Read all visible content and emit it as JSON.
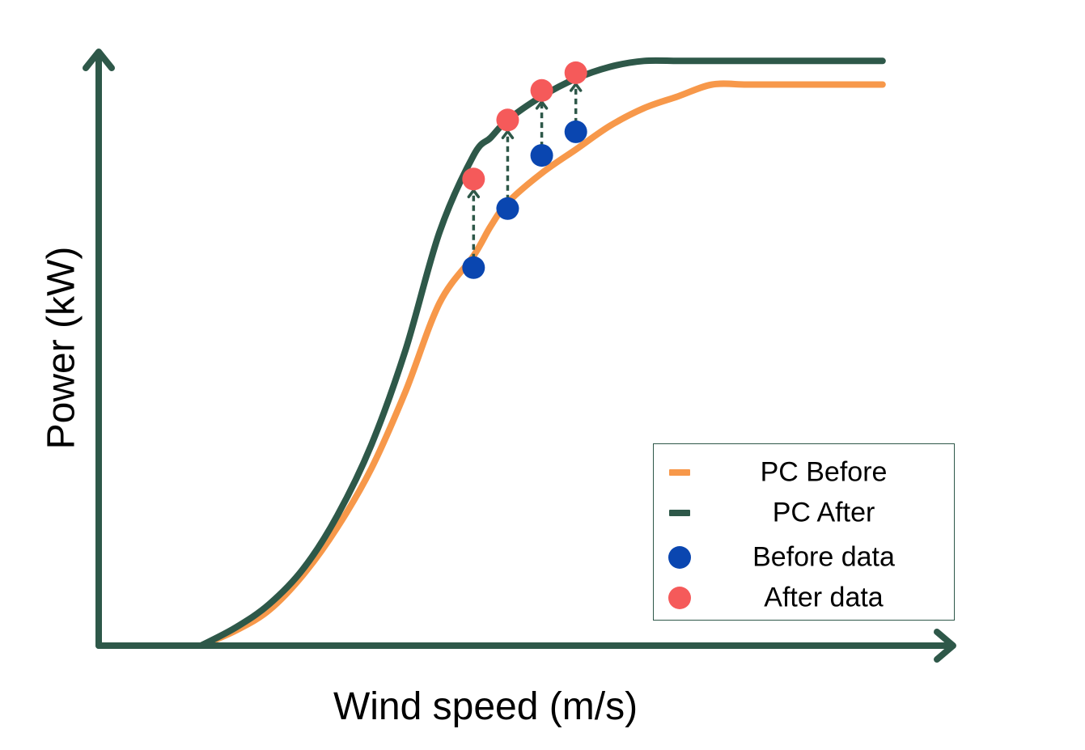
{
  "chart_data": {
    "type": "line",
    "title": "",
    "xlabel": "Wind speed (m/s)",
    "ylabel": "Power (kW)",
    "x_ticks": [],
    "y_ticks": [],
    "grid": false,
    "legend_position": "bottom-right",
    "xlim": [
      0,
      25
    ],
    "ylim": [
      0,
      1.0
    ],
    "series": [
      {
        "name": "PC Before",
        "kind": "line",
        "color": "#f7984a",
        "x": [
          3,
          4,
          5,
          6,
          7,
          8,
          9,
          10,
          11,
          11.5,
          12,
          13,
          14,
          15,
          16,
          17,
          18,
          19,
          20,
          21,
          22,
          23
        ],
        "y": [
          0.0,
          0.025,
          0.06,
          0.12,
          0.2,
          0.3,
          0.43,
          0.58,
          0.66,
          0.71,
          0.75,
          0.8,
          0.84,
          0.88,
          0.91,
          0.93,
          0.95,
          0.95,
          0.95,
          0.95,
          0.95,
          0.95
        ]
      },
      {
        "name": "PC After",
        "kind": "line",
        "color": "#2e5849",
        "x": [
          3,
          4,
          5,
          6,
          7,
          8,
          9,
          10,
          11,
          11.5,
          12,
          13,
          14,
          15,
          16,
          17,
          18,
          19,
          20,
          21,
          22,
          23
        ],
        "y": [
          0.0,
          0.03,
          0.07,
          0.13,
          0.22,
          0.34,
          0.5,
          0.7,
          0.83,
          0.86,
          0.89,
          0.93,
          0.96,
          0.98,
          0.99,
          0.99,
          0.99,
          0.99,
          0.99,
          0.99,
          0.99,
          0.99
        ]
      },
      {
        "name": "Before data",
        "kind": "scatter",
        "color": "#0a46b0",
        "x": [
          11,
          12,
          13,
          14
        ],
        "y": [
          0.64,
          0.74,
          0.83,
          0.87
        ]
      },
      {
        "name": "After data",
        "kind": "scatter",
        "color": "#f55a5a",
        "x": [
          11,
          12,
          13,
          14
        ],
        "y": [
          0.79,
          0.89,
          0.94,
          0.97
        ]
      }
    ]
  },
  "legend": {
    "items": [
      {
        "label": "PC Before",
        "kind": "line",
        "color": "#f7984a"
      },
      {
        "label": "PC After",
        "kind": "line",
        "color": "#2e5849"
      },
      {
        "label": "Before data",
        "kind": "dot",
        "color": "#0a46b0"
      },
      {
        "label": "After data",
        "kind": "dot",
        "color": "#f55a5a"
      }
    ]
  },
  "colors": {
    "axis": "#2e5849",
    "arrow": "#2e5849"
  }
}
